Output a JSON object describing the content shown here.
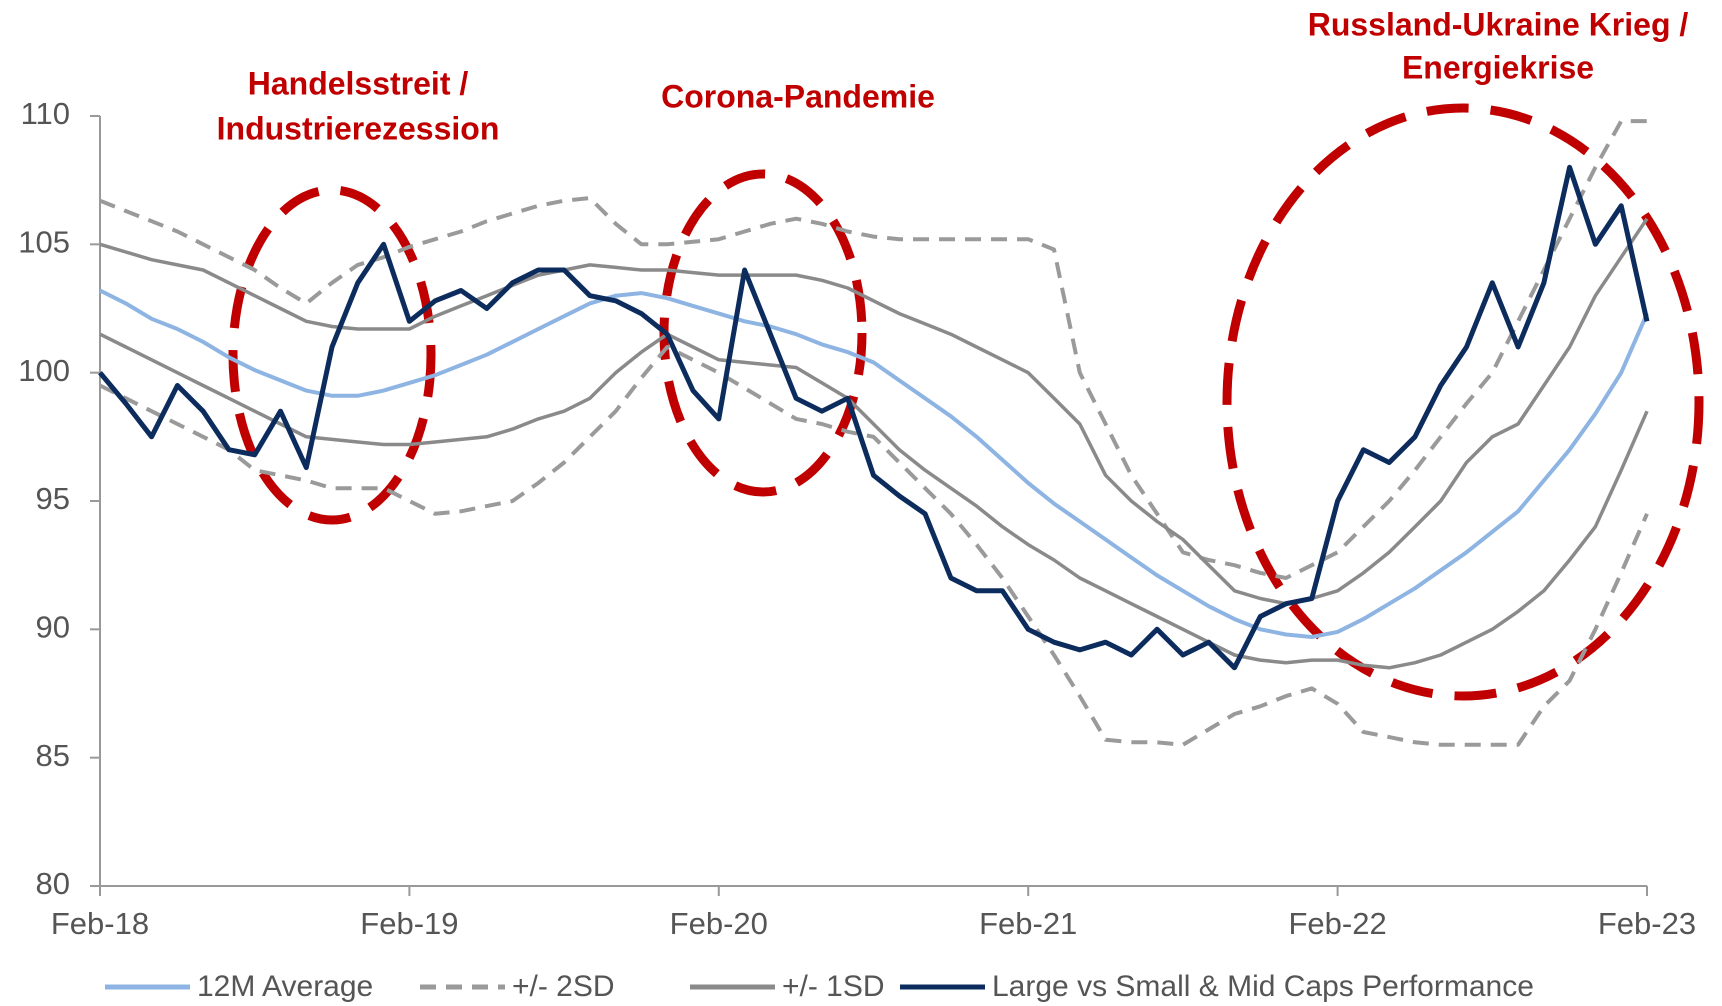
{
  "chart_data": {
    "type": "line",
    "annotations": [
      {
        "text": [
          "Handelsstreit /",
          "Industrierezession"
        ]
      },
      {
        "text": [
          "Corona-Pandemie"
        ]
      },
      {
        "text": [
          "Russland-Ukraine Krieg /",
          "Energiekrise"
        ]
      }
    ],
    "x": [
      "2018-02",
      "2018-03",
      "2018-04",
      "2018-05",
      "2018-06",
      "2018-07",
      "2018-08",
      "2018-09",
      "2018-10",
      "2018-11",
      "2018-12",
      "2019-01",
      "2019-02",
      "2019-03",
      "2019-04",
      "2019-05",
      "2019-06",
      "2019-07",
      "2019-08",
      "2019-09",
      "2019-10",
      "2019-11",
      "2019-12",
      "2020-01",
      "2020-02",
      "2020-03",
      "2020-04",
      "2020-05",
      "2020-06",
      "2020-07",
      "2020-08",
      "2020-09",
      "2020-10",
      "2020-11",
      "2020-12",
      "2021-01",
      "2021-02",
      "2021-03",
      "2021-04",
      "2021-05",
      "2021-06",
      "2021-07",
      "2021-08",
      "2021-09",
      "2021-10",
      "2021-11",
      "2021-12",
      "2022-01",
      "2022-02",
      "2022-03",
      "2022-04",
      "2022-05",
      "2022-06",
      "2022-07",
      "2022-08",
      "2022-09",
      "2022-10",
      "2022-11",
      "2022-12",
      "2023-01",
      "2023-02"
    ],
    "xlim": [
      "2018-02",
      "2023-02"
    ],
    "xticks": [
      {
        "value": "2018-02",
        "label": "Feb-18"
      },
      {
        "value": "2019-02",
        "label": "Feb-19"
      },
      {
        "value": "2020-02",
        "label": "Feb-20"
      },
      {
        "value": "2021-02",
        "label": "Feb-21"
      },
      {
        "value": "2022-02",
        "label": "Feb-22"
      },
      {
        "value": "2023-02",
        "label": "Feb-23"
      }
    ],
    "ylim": [
      80,
      110
    ],
    "yticks": [
      80,
      85,
      90,
      95,
      100,
      105,
      110
    ],
    "grid": false,
    "legend": "bottom",
    "series": [
      {
        "name": "12M Average",
        "color": "#8db4e2",
        "dash": false,
        "values": [
          103.2,
          102.7,
          102.1,
          101.7,
          101.2,
          100.6,
          100.1,
          99.7,
          99.3,
          99.1,
          99.1,
          99.3,
          99.6,
          99.9,
          100.3,
          100.7,
          101.2,
          101.7,
          102.2,
          102.7,
          103.0,
          103.1,
          102.9,
          102.6,
          102.3,
          102.0,
          101.8,
          101.5,
          101.1,
          100.8,
          100.4,
          99.7,
          99.0,
          98.3,
          97.5,
          96.6,
          95.7,
          94.9,
          94.2,
          93.5,
          92.8,
          92.1,
          91.5,
          90.9,
          90.4,
          90.0,
          89.8,
          89.7,
          89.9,
          90.4,
          91.0,
          91.6,
          92.3,
          93.0,
          93.8,
          94.6,
          95.8,
          97.0,
          98.4,
          100.0,
          102.3
        ]
      },
      {
        "name": "+/- 2SD",
        "color": "#9a9a9a",
        "dash": true,
        "values": [
          106.7,
          106.3,
          105.9,
          105.5,
          105.0,
          104.5,
          104.0,
          103.3,
          102.7,
          103.5,
          104.2,
          104.5,
          104.9,
          105.2,
          105.5,
          105.9,
          106.2,
          106.5,
          106.7,
          106.8,
          105.8,
          105.0,
          105.0,
          105.1,
          105.2,
          105.5,
          105.8,
          106.0,
          105.8,
          105.5,
          105.3,
          105.2,
          105.2,
          105.2,
          105.2,
          105.2,
          105.2,
          104.8,
          100.0,
          98.0,
          96.0,
          94.5,
          93.0,
          92.7,
          92.5,
          92.2,
          92.0,
          92.5,
          93.0,
          94.0,
          95.0,
          96.2,
          97.5,
          98.8,
          100.0,
          102.0,
          104.0,
          106.0,
          108.0,
          109.8,
          109.8
        ]
      },
      {
        "name": "+/- 1SD",
        "color": "#8a8a8a",
        "dash": false,
        "values": [
          105.0,
          104.7,
          104.4,
          104.2,
          104.0,
          103.5,
          103.0,
          102.5,
          102.0,
          101.8,
          101.7,
          101.7,
          101.7,
          102.2,
          102.6,
          103.0,
          103.4,
          103.8,
          104.0,
          104.2,
          104.1,
          104.0,
          104.0,
          103.9,
          103.8,
          103.8,
          103.8,
          103.8,
          103.6,
          103.3,
          102.8,
          102.3,
          101.9,
          101.5,
          101.0,
          100.5,
          100.0,
          99.0,
          98.0,
          96.0,
          95.0,
          94.2,
          93.5,
          92.5,
          91.5,
          91.2,
          91.0,
          91.2,
          91.5,
          92.2,
          93.0,
          94.0,
          95.0,
          96.5,
          97.5,
          98.0,
          99.5,
          101.0,
          103.0,
          104.5,
          106.0
        ]
      },
      {
        "name": "Large vs Small & Mid Caps Performance",
        "color": "#0d2c5e",
        "dash": false,
        "values": [
          100.0,
          98.8,
          97.5,
          99.5,
          98.5,
          97.0,
          96.8,
          98.5,
          96.3,
          101.0,
          103.5,
          105.0,
          102.0,
          102.8,
          103.2,
          102.5,
          103.5,
          104.0,
          104.0,
          103.0,
          102.8,
          102.3,
          101.5,
          99.3,
          98.2,
          104.0,
          101.5,
          99.0,
          98.5,
          99.0,
          96.0,
          95.2,
          94.5,
          92.0,
          91.5,
          91.5,
          90.0,
          89.5,
          89.2,
          89.5,
          89.0,
          90.0,
          89.0,
          89.5,
          88.5,
          90.5,
          91.0,
          91.2,
          95.0,
          97.0,
          96.5,
          97.5,
          99.5,
          101.0,
          103.5,
          101.0,
          103.5,
          108.0,
          105.0,
          106.5,
          102.0
        ]
      }
    ],
    "lower_bands": [
      {
        "name": "+/- 2SD",
        "values": [
          99.5,
          99.0,
          98.5,
          98.0,
          97.5,
          97.0,
          96.2,
          96.0,
          95.8,
          95.5,
          95.5,
          95.5,
          95.0,
          94.5,
          94.6,
          94.8,
          95.0,
          95.7,
          96.5,
          97.5,
          98.5,
          99.8,
          101.0,
          100.5,
          100.0,
          99.4,
          98.8,
          98.2,
          98.0,
          97.7,
          97.5,
          96.5,
          95.5,
          94.5,
          93.3,
          92.0,
          90.5,
          89.0,
          87.4,
          85.7,
          85.6,
          85.6,
          85.5,
          86.1,
          86.7,
          87.0,
          87.4,
          87.7,
          87.1,
          86.0,
          85.8,
          85.6,
          85.5,
          85.5,
          85.5,
          85.5,
          87.0,
          88.0,
          90.0,
          92.2,
          94.5
        ]
      },
      {
        "name": "+/- 1SD",
        "values": [
          101.5,
          101.0,
          100.5,
          100.0,
          99.5,
          99.0,
          98.5,
          98.0,
          97.5,
          97.4,
          97.3,
          97.2,
          97.2,
          97.3,
          97.4,
          97.5,
          97.8,
          98.2,
          98.5,
          99.0,
          100.0,
          100.8,
          101.5,
          101.0,
          100.5,
          100.4,
          100.3,
          100.2,
          99.6,
          99.0,
          98.0,
          97.0,
          96.2,
          95.5,
          94.8,
          94.0,
          93.3,
          92.7,
          92.0,
          91.5,
          91.0,
          90.5,
          90.0,
          89.5,
          89.0,
          88.8,
          88.7,
          88.8,
          88.8,
          88.6,
          88.5,
          88.7,
          89.0,
          89.5,
          90.0,
          90.7,
          91.5,
          92.7,
          94.0,
          96.2,
          98.5
        ]
      }
    ]
  }
}
